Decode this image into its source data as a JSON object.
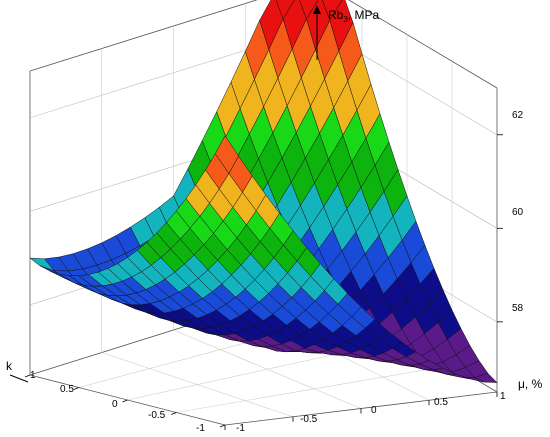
{
  "chart_data": {
    "type": "surface3d",
    "axes": {
      "x": {
        "label": "μ, %",
        "ticks": [
          "-1",
          "-0.5",
          "0",
          "0.5",
          "1"
        ],
        "range": [
          -1,
          1
        ]
      },
      "y": {
        "label": "k",
        "ticks": [
          "1",
          "0.5",
          "0",
          "-0.5",
          "-1"
        ],
        "range": [
          -1,
          1
        ]
      },
      "z": {
        "label_main": "Rb",
        "label_sub": "3",
        "label_suffix": ", MPa",
        "ticks": [
          "58",
          "60",
          "62"
        ],
        "values": [
          58,
          60,
          62
        ],
        "range": [
          56.5,
          63
        ]
      }
    },
    "surface": {
      "x_range": [
        -1,
        1
      ],
      "y_range": [
        -1,
        1
      ],
      "grid_x": 21,
      "grid_y": 21,
      "z_min": 56.7,
      "z_max": 63.0,
      "note": "Surface shown as valley: lowest near k≈-1 (front), rising toward back corners"
    },
    "colormap": [
      "#5a1a8a",
      "#0d0d8a",
      "#1a4ad8",
      "#14b4be",
      "#0db40d",
      "#18d818",
      "#f0b41e",
      "#f55a1a",
      "#e81010"
    ],
    "grid": true
  }
}
